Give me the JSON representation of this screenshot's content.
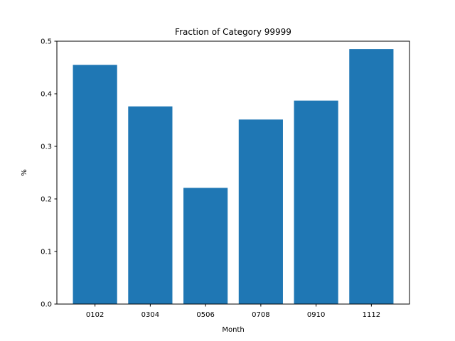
{
  "chart_data": {
    "type": "bar",
    "title": "Fraction of Category 99999",
    "xlabel": "Month",
    "ylabel": "%",
    "categories": [
      "0102",
      "0304",
      "0506",
      "0708",
      "0910",
      "1112"
    ],
    "values": [
      0.455,
      0.376,
      0.221,
      0.351,
      0.387,
      0.485
    ],
    "ylim": [
      0,
      0.5
    ],
    "yticks": [
      0.0,
      0.1,
      0.2,
      0.3,
      0.4,
      0.5
    ],
    "ytick_labels": [
      "0.0",
      "0.1",
      "0.2",
      "0.3",
      "0.4",
      "0.5"
    ],
    "bar_color": "#1f77b4",
    "grid": false,
    "legend": "none"
  }
}
